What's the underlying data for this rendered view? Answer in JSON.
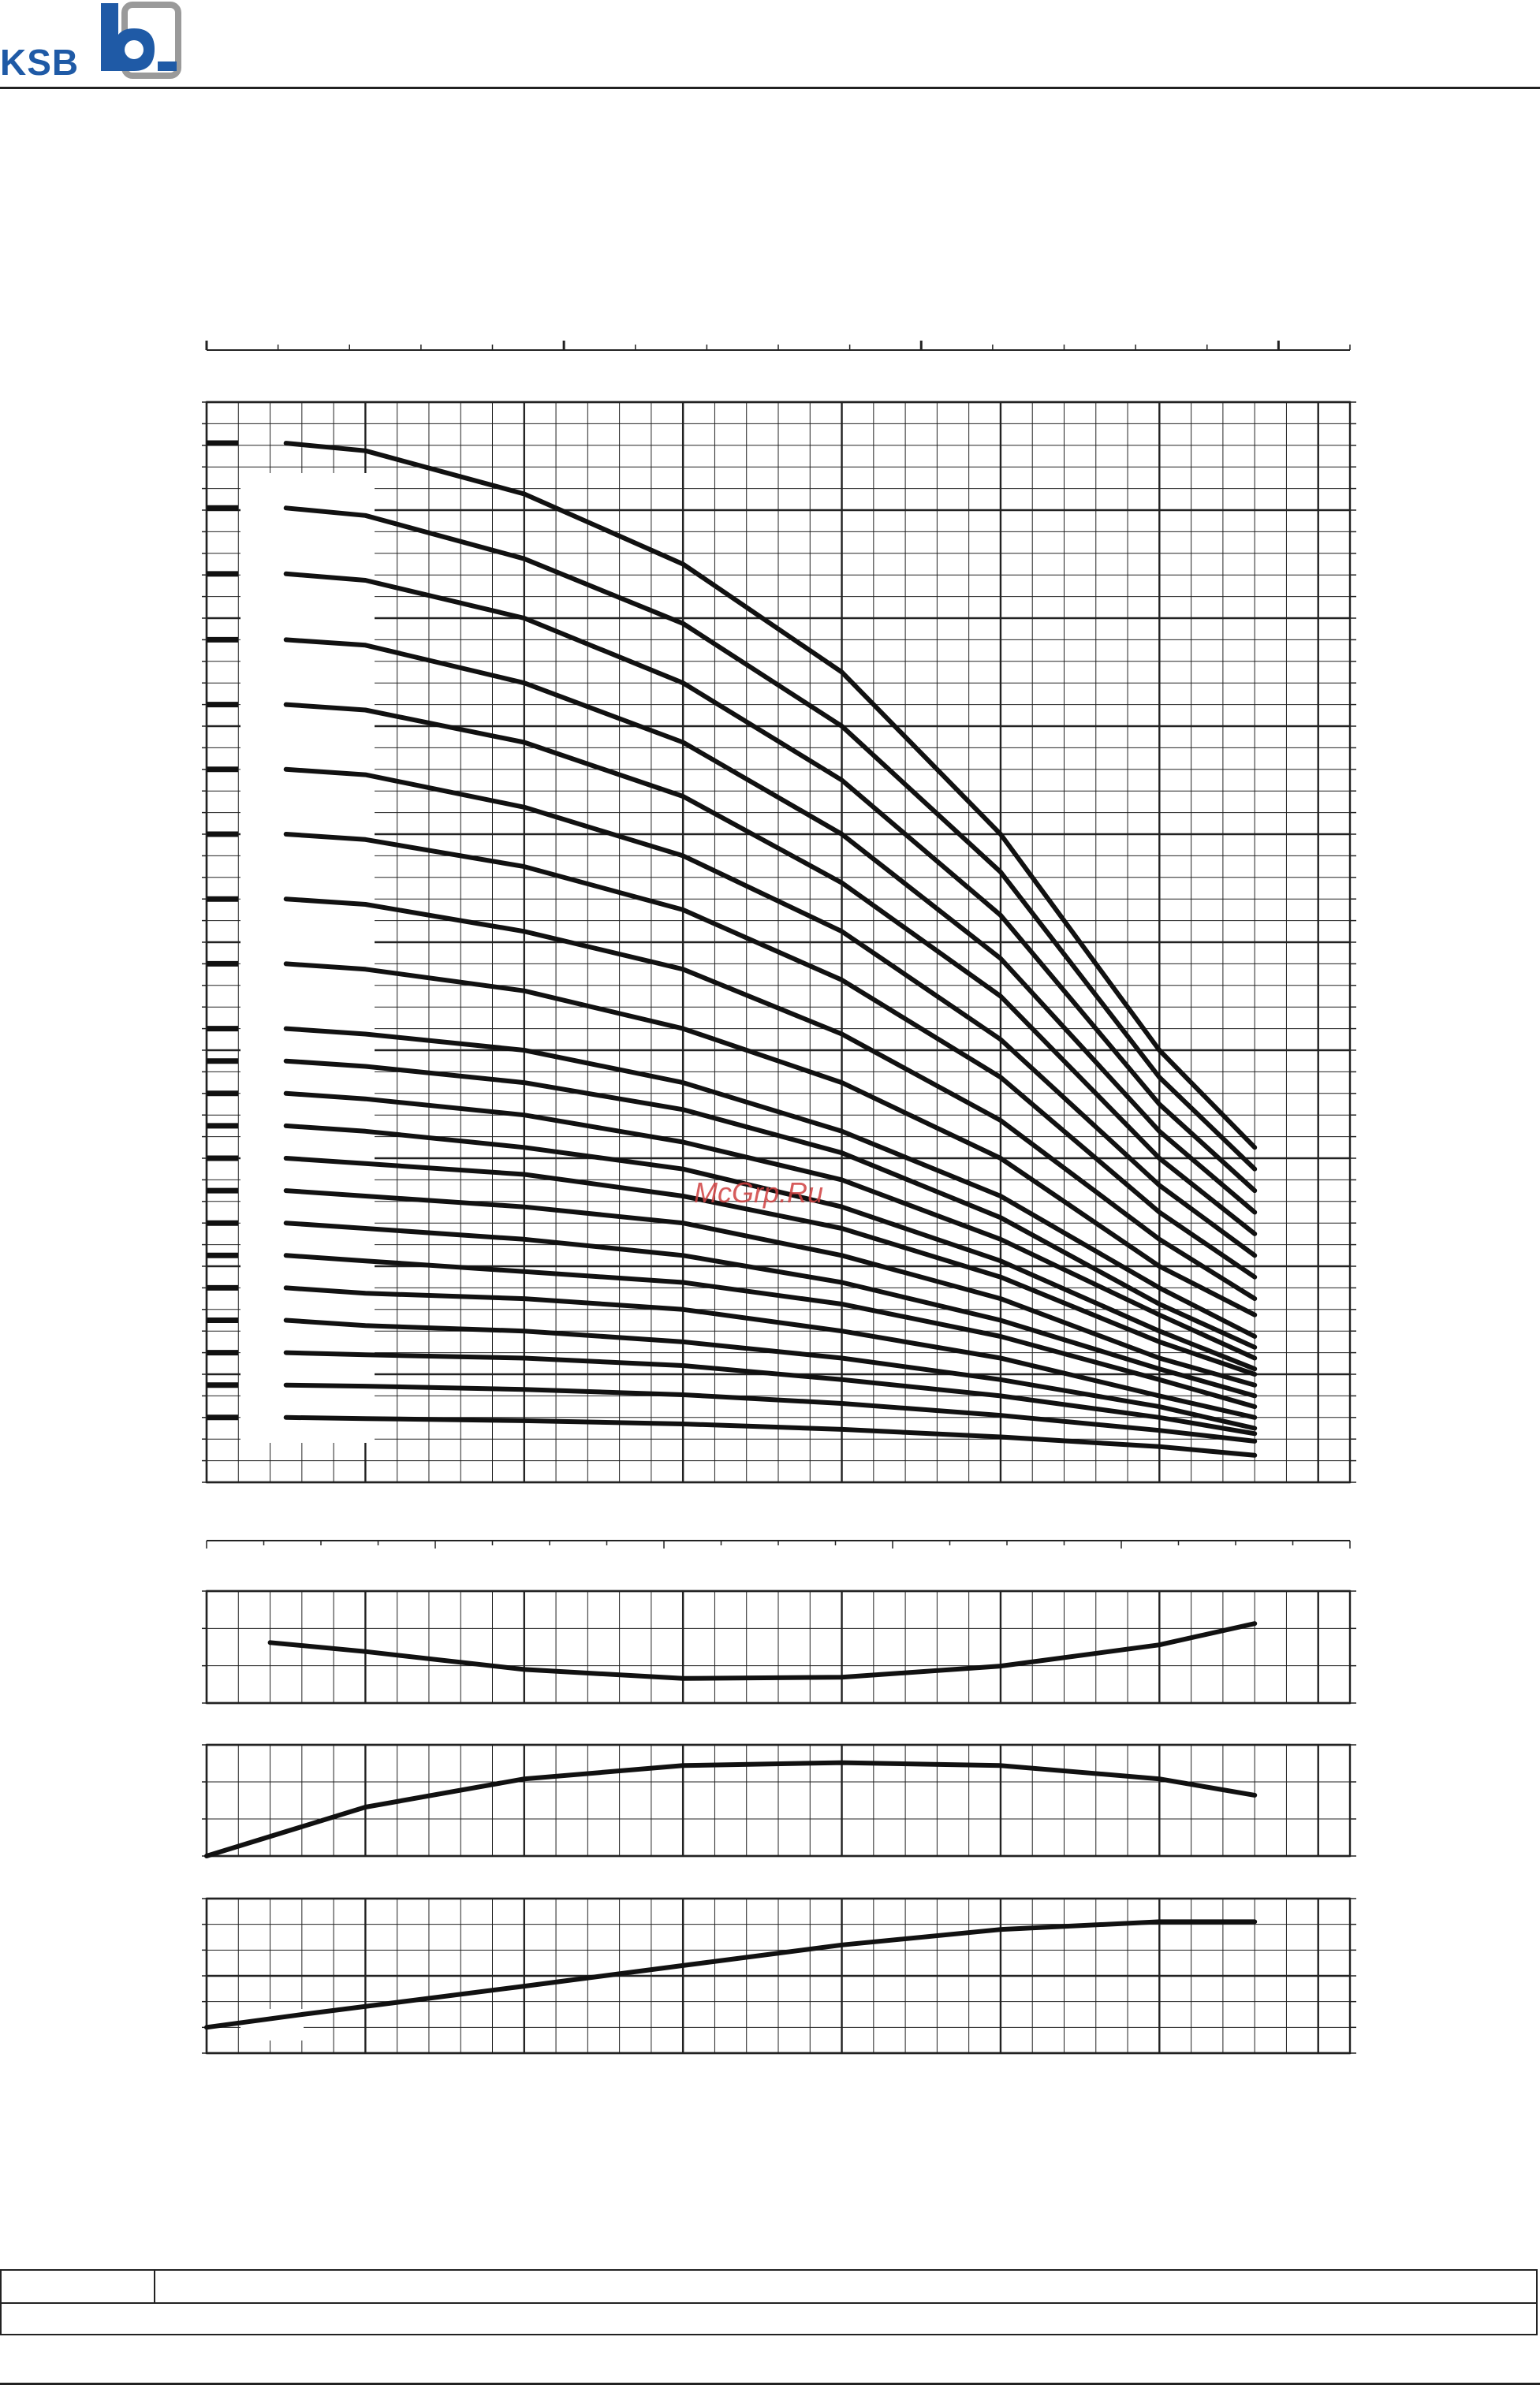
{
  "header": {
    "logo_text": "KSB",
    "logo_icon": "ksb-b-logo-icon",
    "brand_color": "#1f5aa6"
  },
  "watermark": {
    "text": "McGrp.Ru",
    "color": "#d04040"
  },
  "footer": {
    "cells": [
      "",
      "",
      ""
    ]
  },
  "chart_data": [
    {
      "type": "line",
      "title": "",
      "xlabel": "",
      "ylabel": "",
      "xlim": [
        0,
        36
      ],
      "ylim": [
        0,
        100
      ],
      "grid": true,
      "legend": "none",
      "note": "",
      "x": [
        2.5,
        5,
        10,
        15,
        20,
        25,
        30,
        33
      ],
      "series": [
        {
          "values": [
            96.2,
            95.5,
            91.5,
            85.0,
            75.0,
            60.0,
            40.0,
            31.0
          ]
        },
        {
          "values": [
            90.2,
            89.5,
            85.5,
            79.5,
            70.0,
            56.5,
            37.5,
            29.0
          ]
        },
        {
          "values": [
            84.1,
            83.5,
            80.0,
            74.0,
            65.0,
            52.5,
            35.0,
            27.0
          ]
        },
        {
          "values": [
            78.0,
            77.5,
            74.0,
            68.5,
            60.0,
            48.5,
            32.5,
            25.0
          ]
        },
        {
          "values": [
            72.0,
            71.5,
            68.5,
            63.5,
            55.5,
            45.0,
            30.0,
            23.0
          ]
        },
        {
          "values": [
            66.0,
            65.5,
            62.5,
            58.0,
            51.0,
            41.0,
            27.5,
            21.0
          ]
        },
        {
          "values": [
            60.0,
            59.5,
            57.0,
            53.0,
            46.5,
            37.5,
            25.0,
            19.0
          ]
        },
        {
          "values": [
            54.0,
            53.5,
            51.0,
            47.5,
            41.5,
            33.5,
            22.5,
            17.0
          ]
        },
        {
          "values": [
            48.0,
            47.5,
            45.5,
            42.0,
            37.0,
            30.0,
            20.0,
            15.5
          ]
        },
        {
          "values": [
            42.0,
            41.5,
            40.0,
            37.0,
            32.5,
            26.5,
            18.0,
            13.5
          ]
        },
        {
          "values": [
            39.0,
            38.5,
            37.0,
            34.5,
            30.5,
            24.5,
            16.5,
            12.5
          ]
        },
        {
          "values": [
            36.0,
            35.5,
            34.0,
            31.5,
            28.0,
            22.5,
            15.5,
            11.5
          ]
        },
        {
          "values": [
            33.0,
            32.5,
            31.0,
            29.0,
            25.5,
            20.5,
            14.0,
            10.5
          ]
        },
        {
          "values": [
            30.0,
            29.5,
            28.5,
            26.5,
            23.5,
            19.0,
            13.0,
            10.0
          ]
        },
        {
          "values": [
            27.0,
            26.5,
            25.5,
            24.0,
            21.0,
            17.0,
            11.5,
            9.0
          ]
        },
        {
          "values": [
            24.0,
            23.5,
            22.5,
            21.0,
            18.5,
            15.0,
            10.5,
            8.0
          ]
        },
        {
          "values": [
            21.0,
            20.5,
            19.5,
            18.5,
            16.5,
            13.5,
            9.5,
            7.0
          ]
        },
        {
          "values": [
            18.0,
            17.5,
            17.0,
            16.0,
            14.0,
            11.5,
            8.0,
            6.0
          ]
        },
        {
          "values": [
            15.0,
            14.5,
            14.0,
            13.0,
            11.5,
            9.5,
            7.0,
            5.0
          ]
        },
        {
          "values": [
            12.0,
            11.8,
            11.5,
            10.8,
            9.5,
            8.0,
            6.0,
            4.5
          ]
        },
        {
          "values": [
            9.0,
            8.9,
            8.6,
            8.1,
            7.3,
            6.2,
            4.8,
            3.8
          ]
        },
        {
          "values": [
            6.0,
            5.9,
            5.7,
            5.4,
            4.9,
            4.2,
            3.3,
            2.5
          ]
        }
      ]
    },
    {
      "type": "line",
      "title": "",
      "xlabel": "",
      "ylabel": "",
      "xlim": [
        0,
        36
      ],
      "ylim": [
        0,
        10
      ],
      "grid": true,
      "legend": "none",
      "x": [
        2,
        5,
        10,
        15,
        20,
        25,
        30,
        33
      ],
      "series": [
        {
          "values": [
            5.4,
            4.6,
            3.0,
            2.2,
            2.3,
            3.3,
            5.2,
            7.1
          ]
        }
      ]
    },
    {
      "type": "line",
      "title": "",
      "xlabel": "",
      "ylabel": "",
      "xlim": [
        0,
        36
      ],
      "ylim": [
        0,
        75
      ],
      "grid": true,
      "legend": "none",
      "x": [
        0,
        5,
        10,
        15,
        20,
        25,
        30,
        33
      ],
      "series": [
        {
          "values": [
            0,
            33,
            52,
            61,
            63,
            61,
            52,
            41
          ]
        }
      ]
    },
    {
      "type": "line",
      "title": "",
      "xlabel": "",
      "ylabel": "",
      "xlim": [
        0,
        36
      ],
      "ylim": [
        0,
        6
      ],
      "grid": true,
      "legend": "none",
      "x": [
        0,
        3,
        10,
        15,
        20,
        25,
        30,
        33
      ],
      "series": [
        {
          "values": [
            1.0,
            1.5,
            2.6,
            3.4,
            4.2,
            4.8,
            5.1,
            5.1
          ]
        }
      ]
    }
  ]
}
